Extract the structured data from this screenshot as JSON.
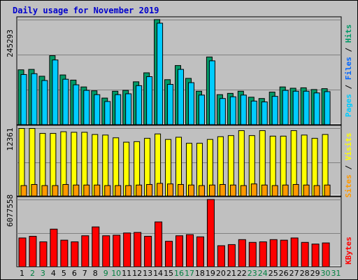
{
  "title": "Daily usage for November 2019",
  "colors": {
    "hits": "#009966",
    "files": "#0066ff",
    "pages": "#00ccff",
    "visits": "#ffff00",
    "sites": "#ff9900",
    "kbytes": "#ff0000",
    "weekday_tick": "#000000",
    "weekend_tick": "#008040"
  },
  "chart_data": [
    {
      "type": "bar",
      "panel": "hits-files-pages",
      "y_max_label": "245293",
      "legend": [
        "Pages",
        "Files",
        "Hits"
      ],
      "categories": [
        "1",
        "2",
        "3",
        "4",
        "5",
        "6",
        "7",
        "8",
        "9",
        "10",
        "11",
        "12",
        "13",
        "14",
        "15",
        "16",
        "17",
        "18",
        "19",
        "20",
        "21",
        "22",
        "23",
        "24",
        "25",
        "26",
        "27",
        "28",
        "29",
        "30",
        "31"
      ],
      "weekend": [
        false,
        true,
        true,
        false,
        false,
        false,
        false,
        false,
        true,
        true,
        false,
        false,
        false,
        false,
        false,
        true,
        true,
        false,
        false,
        false,
        false,
        false,
        true,
        true,
        false,
        false,
        false,
        false,
        false,
        true,
        true
      ],
      "ylim": [
        0,
        245293
      ],
      "series": [
        {
          "name": "Hits",
          "values": [
            128000,
            129000,
            113000,
            161000,
            116000,
            104000,
            88000,
            79000,
            62000,
            78000,
            80000,
            100000,
            121000,
            245293,
            105000,
            138000,
            108000,
            78000,
            158000,
            70000,
            73000,
            78000,
            64000,
            61000,
            76000,
            88000,
            85000,
            86000,
            82000,
            84000,
            0
          ]
        },
        {
          "name": "Files",
          "values": [
            117000,
            119000,
            103000,
            151000,
            106000,
            93000,
            80000,
            70000,
            54000,
            70000,
            72000,
            91000,
            112000,
            237000,
            94000,
            129000,
            98000,
            69000,
            149000,
            61000,
            65000,
            69000,
            55000,
            53000,
            66000,
            80000,
            78000,
            78000,
            74000,
            77000,
            0
          ]
        },
        {
          "name": "Pages",
          "values": [
            0,
            0,
            0,
            0,
            0,
            0,
            0,
            0,
            0,
            0,
            0,
            0,
            0,
            0,
            0,
            0,
            0,
            0,
            0,
            0,
            0,
            0,
            0,
            0,
            0,
            0,
            0,
            0,
            0,
            0,
            0
          ]
        }
      ]
    },
    {
      "type": "bar",
      "panel": "visits-sites",
      "y_max_label": "12361",
      "legend": [
        "Sites",
        "Visits"
      ],
      "categories": [
        "1",
        "2",
        "3",
        "4",
        "5",
        "6",
        "7",
        "8",
        "9",
        "10",
        "11",
        "12",
        "13",
        "14",
        "15",
        "16",
        "17",
        "18",
        "19",
        "20",
        "21",
        "22",
        "23",
        "24",
        "25",
        "26",
        "27",
        "28",
        "29",
        "30",
        "31"
      ],
      "ylim": [
        0,
        12361
      ],
      "series": [
        {
          "name": "Visits",
          "values": [
            12300,
            12300,
            11400,
            11400,
            11700,
            11600,
            11600,
            11200,
            11100,
            10600,
            9800,
            9900,
            10500,
            11300,
            10300,
            10700,
            9600,
            9600,
            10300,
            10800,
            11000,
            11900,
            11000,
            11900,
            10900,
            10900,
            11900,
            11100,
            10500,
            11200,
            0
          ]
        },
        {
          "name": "Sites",
          "values": [
            1900,
            2100,
            1900,
            1900,
            2100,
            2000,
            2000,
            2000,
            1900,
            1900,
            1900,
            2000,
            2100,
            2300,
            2200,
            2100,
            2000,
            1900,
            2000,
            2100,
            2000,
            1900,
            2200,
            2000,
            1900,
            2000,
            2100,
            2000,
            1900,
            2000,
            0
          ]
        }
      ]
    },
    {
      "type": "bar",
      "panel": "kbytes",
      "y_max_label": "6077558",
      "legend": [
        "KBytes"
      ],
      "categories": [
        "1",
        "2",
        "3",
        "4",
        "5",
        "6",
        "7",
        "8",
        "9",
        "10",
        "11",
        "12",
        "13",
        "14",
        "15",
        "16",
        "17",
        "18",
        "19",
        "20",
        "21",
        "22",
        "23",
        "24",
        "25",
        "26",
        "27",
        "28",
        "29",
        "30",
        "31"
      ],
      "ylim": [
        0,
        6077558
      ],
      "series": [
        {
          "name": "KBytes",
          "values": [
            2600000,
            2750000,
            2250000,
            3400000,
            2400000,
            2250000,
            2800000,
            3600000,
            2800000,
            2850000,
            3050000,
            3100000,
            2750000,
            4050000,
            2300000,
            2800000,
            2900000,
            2700000,
            6077558,
            1900000,
            2000000,
            2450000,
            2200000,
            2250000,
            2450000,
            2400000,
            2600000,
            2200000,
            2050000,
            2150000,
            0
          ]
        }
      ]
    }
  ]
}
